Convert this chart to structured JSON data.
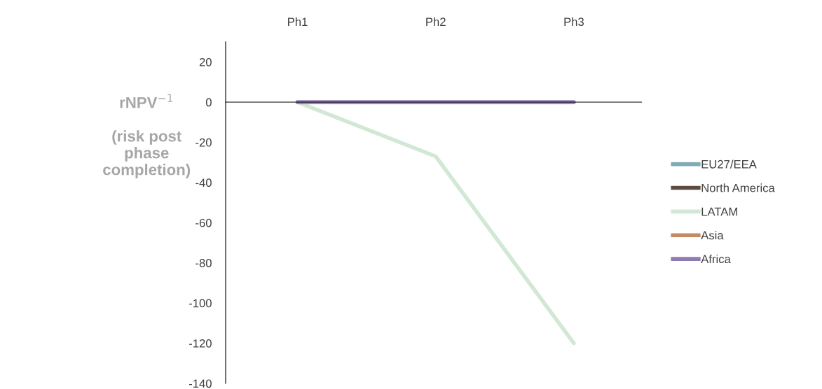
{
  "chart_data": {
    "type": "line",
    "ylabel": "rNPV$^{−1}$\n\n(risk post\nphase\ncompletion)",
    "categories": [
      "Ph1",
      "Ph2",
      "Ph3"
    ],
    "series": [
      {
        "name": "EU27/EEA",
        "color": "#7faab5",
        "values": [
          null,
          null,
          null
        ]
      },
      {
        "name": "North America",
        "color": "#5c4b40",
        "values": [
          null,
          null,
          null
        ]
      },
      {
        "name": "LATAM",
        "color": "#d2e8d5",
        "values": [
          0,
          -27,
          -120
        ]
      },
      {
        "name": "Asia",
        "color": "#c48a62",
        "values": [
          null,
          null,
          null
        ]
      },
      {
        "name": "Africa",
        "color": "#8f7bb2",
        "values": [
          0,
          0,
          0
        ]
      }
    ],
    "ylim": [
      -140,
      30
    ],
    "yticks": [
      -140,
      -120,
      -100,
      -80,
      -60,
      -40,
      -20,
      0,
      20
    ],
    "legend": "right",
    "marker": "none",
    "line_style": "solid"
  }
}
